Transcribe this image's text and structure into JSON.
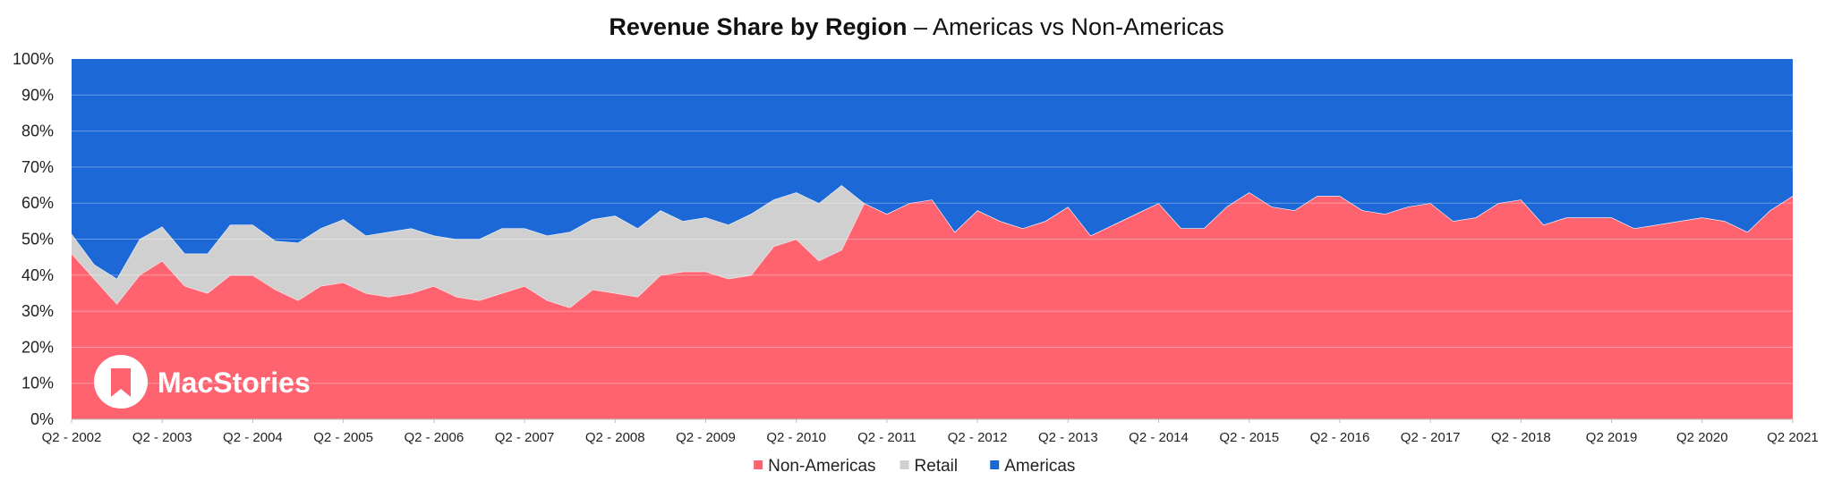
{
  "chart_data": {
    "type": "area",
    "stacked": true,
    "percent": true,
    "title_bold": "Revenue Share by Region",
    "title_rest": " – Americas vs Non-Americas",
    "ylim": [
      0,
      100
    ],
    "y_ticks": [
      0,
      10,
      20,
      30,
      40,
      50,
      60,
      70,
      80,
      90,
      100
    ],
    "y_tick_labels": [
      "0%",
      "10%",
      "20%",
      "30%",
      "40%",
      "50%",
      "60%",
      "70%",
      "80%",
      "90%",
      "100%"
    ],
    "x_tick_labels": [
      {
        "i": 0,
        "label": "Q2 - 2002"
      },
      {
        "i": 4,
        "label": "Q2 - 2003"
      },
      {
        "i": 8,
        "label": "Q2 - 2004"
      },
      {
        "i": 12,
        "label": "Q2 - 2005"
      },
      {
        "i": 16,
        "label": "Q2 - 2006"
      },
      {
        "i": 20,
        "label": "Q2 - 2007"
      },
      {
        "i": 24,
        "label": "Q2 - 2008"
      },
      {
        "i": 28,
        "label": "Q2 - 2009"
      },
      {
        "i": 32,
        "label": "Q2 - 2010"
      },
      {
        "i": 36,
        "label": "Q2 - 2011"
      },
      {
        "i": 40,
        "label": "Q2 - 2012"
      },
      {
        "i": 44,
        "label": "Q2 - 2013"
      },
      {
        "i": 48,
        "label": "Q2 - 2014"
      },
      {
        "i": 52,
        "label": "Q2 - 2015"
      },
      {
        "i": 56,
        "label": "Q2 - 2016"
      },
      {
        "i": 60,
        "label": "Q2 - 2017"
      },
      {
        "i": 64,
        "label": "Q2 - 2018"
      },
      {
        "i": 68,
        "label": "Q2 2019"
      },
      {
        "i": 72,
        "label": "Q2 2020"
      },
      {
        "i": 76,
        "label": "Q2 2021"
      }
    ],
    "legend_position": "bottom-center",
    "watermark": "MacStories",
    "series": [
      {
        "name": "Non-Americas",
        "color": "#ff6370",
        "values": [
          46,
          39,
          32,
          40,
          44,
          37,
          35,
          40,
          40,
          36,
          33,
          37,
          38,
          35,
          34,
          35,
          37,
          34,
          33,
          35,
          37,
          33,
          31,
          36,
          35,
          34,
          40,
          41,
          41,
          39,
          40,
          48,
          50,
          44,
          47,
          60,
          57,
          60,
          61,
          52,
          58,
          55,
          53,
          55,
          59,
          51,
          54,
          57,
          60,
          53,
          53,
          59,
          63,
          59,
          58,
          62,
          62,
          58,
          57,
          59,
          60,
          55,
          56,
          60,
          61,
          54,
          56,
          56,
          56,
          53,
          54,
          55,
          56,
          55,
          52,
          58,
          62
        ]
      },
      {
        "name": "Retail",
        "color": "#d0d0d0",
        "values": [
          5.5,
          4,
          7,
          10,
          9.5,
          9,
          11,
          14,
          14,
          13.5,
          16,
          16,
          17.5,
          16,
          18,
          18,
          14,
          16,
          17,
          18,
          16,
          18,
          21,
          19.5,
          21.5,
          19,
          18,
          14,
          15,
          15,
          17,
          13,
          13,
          16,
          18,
          0,
          0,
          0,
          0,
          0,
          0,
          0,
          0,
          0,
          0,
          0,
          0,
          0,
          0,
          0,
          0,
          0,
          0,
          0,
          0,
          0,
          0,
          0,
          0,
          0,
          0,
          0,
          0,
          0,
          0,
          0,
          0,
          0,
          0,
          0,
          0,
          0,
          0,
          0,
          0,
          0,
          0
        ]
      },
      {
        "name": "Americas",
        "color": "#1b68d6",
        "values": [
          48.5,
          57,
          61,
          50,
          46.5,
          54,
          54,
          46,
          46,
          50.5,
          51,
          47,
          44.5,
          49,
          48,
          47,
          49,
          50,
          50,
          47,
          47,
          49,
          48,
          44.5,
          43.5,
          47,
          42,
          45,
          44,
          46,
          43,
          39,
          37,
          40,
          35,
          40,
          43,
          40,
          39,
          48,
          42,
          45,
          47,
          45,
          41,
          49,
          46,
          43,
          40,
          47,
          47,
          41,
          37,
          41,
          42,
          38,
          38,
          42,
          43,
          41,
          40,
          45,
          44,
          40,
          39,
          46,
          44,
          44,
          44,
          47,
          46,
          45,
          44,
          45,
          48,
          42,
          38
        ]
      }
    ]
  }
}
